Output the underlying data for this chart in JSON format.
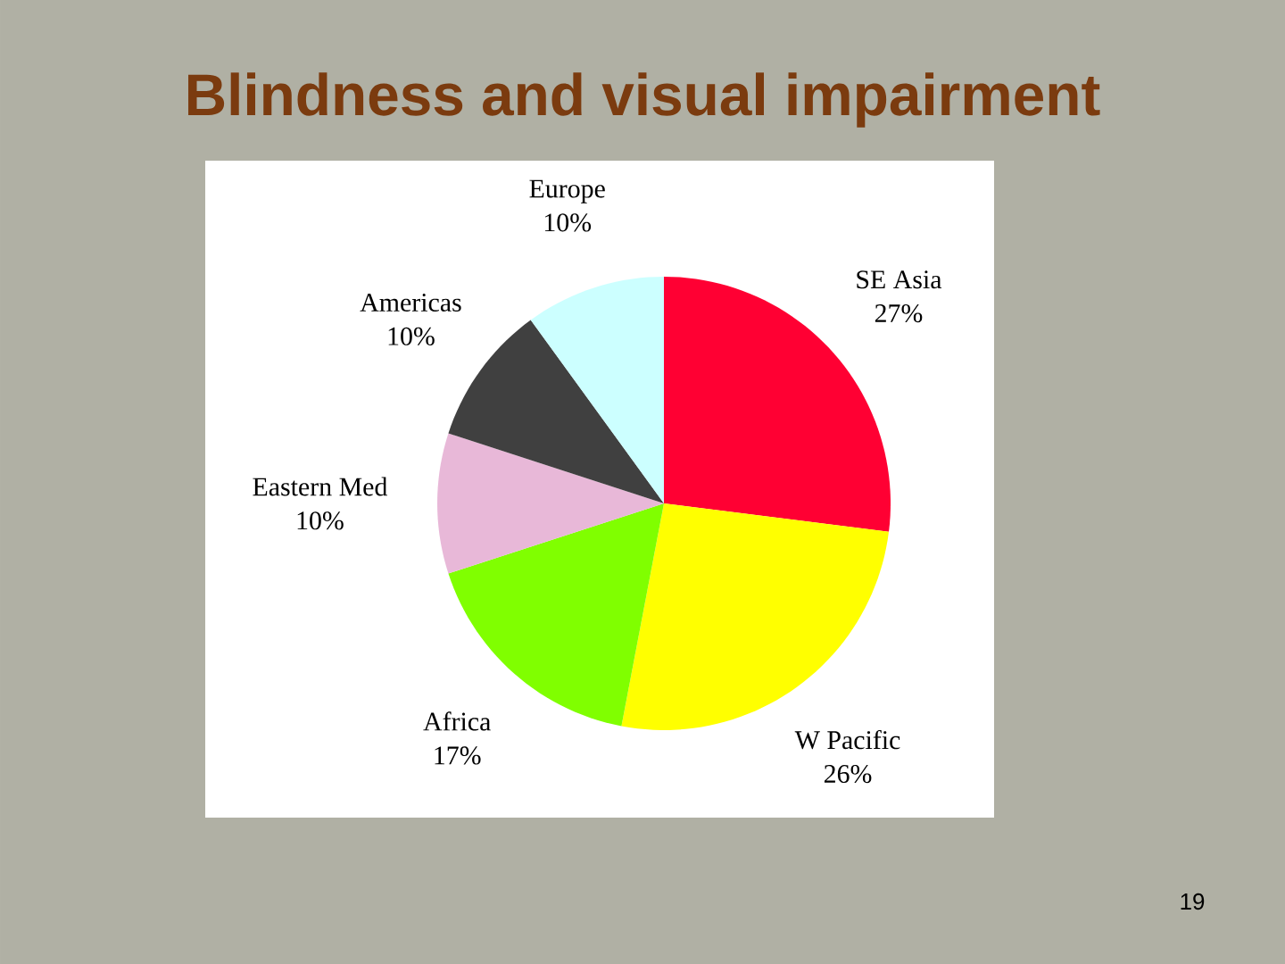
{
  "chart_data": {
    "type": "pie",
    "title": "Blindness and visual impairment",
    "categories": [
      "SE Asia",
      "W Pacific",
      "Africa",
      "Eastern Med",
      "Americas",
      "Europe"
    ],
    "values": [
      27,
      26,
      17,
      10,
      10,
      10
    ],
    "value_labels": [
      "27%",
      "26%",
      "17%",
      "10%",
      "10%",
      "10%"
    ],
    "colors": [
      "#ff0033",
      "#ffff00",
      "#80ff00",
      "#e8b8d8",
      "#404040",
      "#ccffff"
    ],
    "annotations": [
      "19"
    ]
  }
}
